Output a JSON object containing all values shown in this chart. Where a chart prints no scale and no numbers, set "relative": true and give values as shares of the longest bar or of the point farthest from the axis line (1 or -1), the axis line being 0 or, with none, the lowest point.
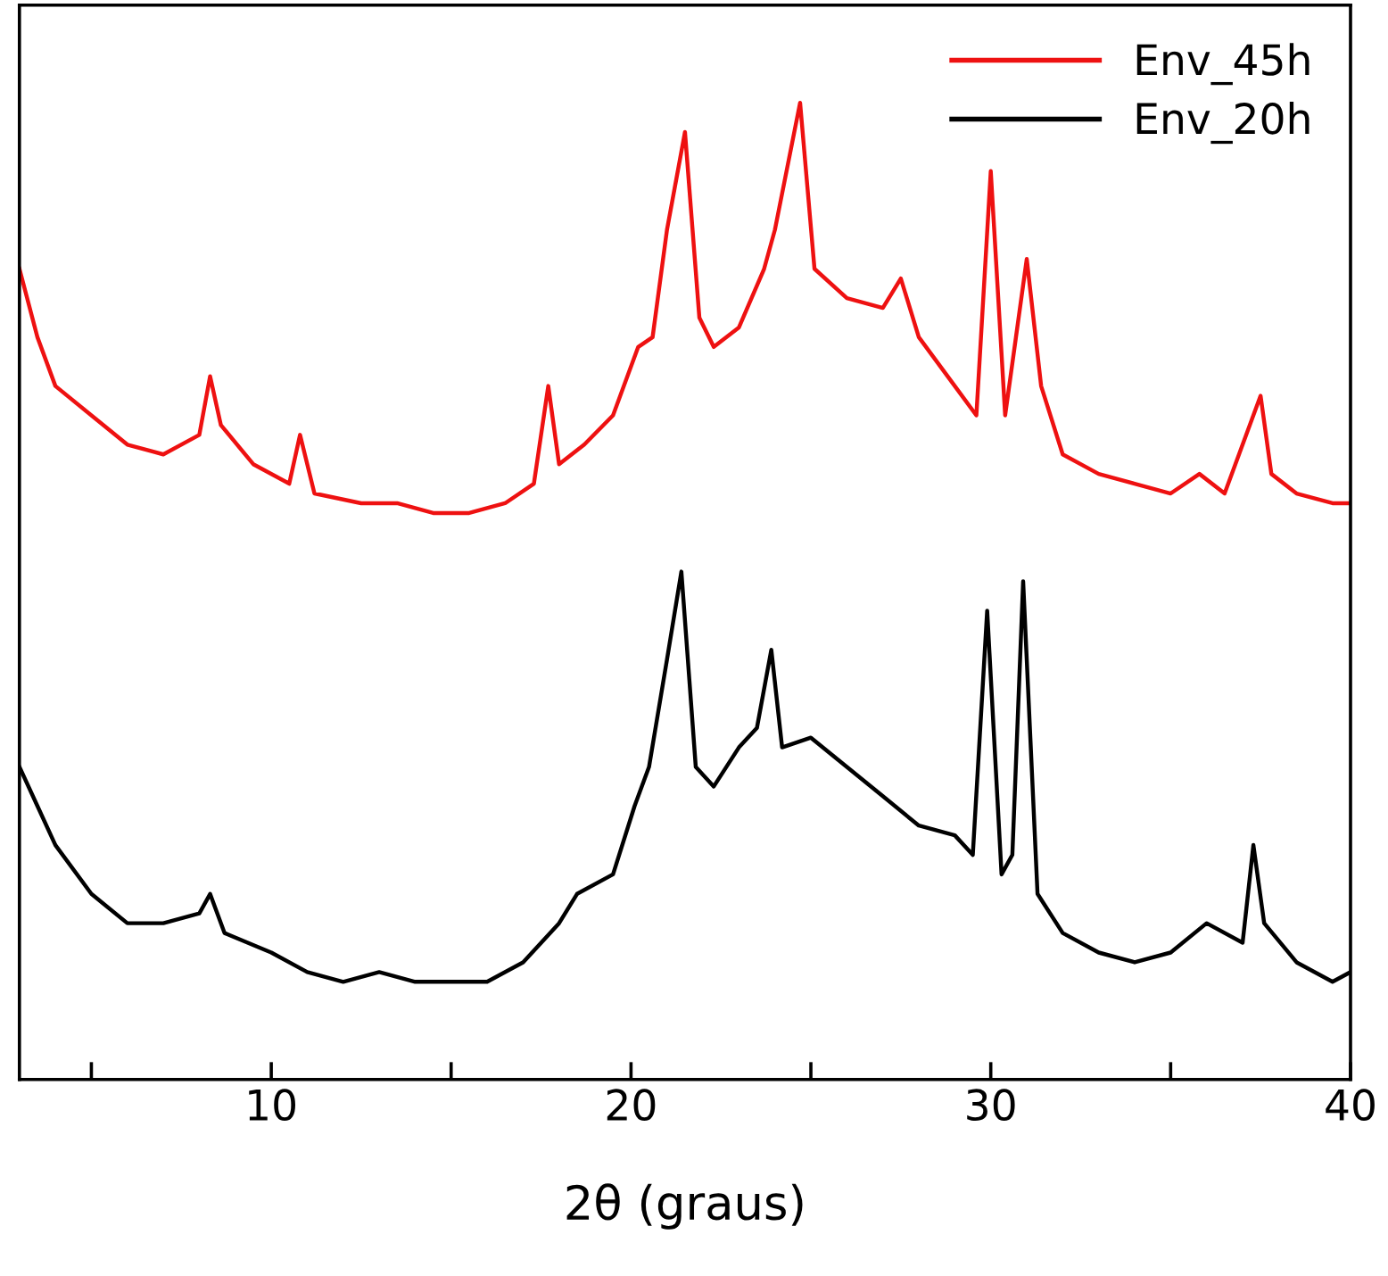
{
  "chart_data": {
    "type": "line",
    "relative": true,
    "xlabel": "2θ (graus)",
    "xlim": [
      3,
      40
    ],
    "xticks": [
      {
        "value": 5,
        "label": null
      },
      10,
      {
        "value": 15,
        "label": null
      },
      20,
      {
        "value": 25,
        "label": null
      },
      30,
      {
        "value": 35,
        "label": null
      },
      40
    ],
    "tick_labels": "x",
    "legend": "top right",
    "grid": false,
    "line_style": "solid",
    "marker": "none",
    "series": [
      {
        "name": "Env_45h",
        "color": "#ee1111",
        "x": [
          3.0,
          3.5,
          4.0,
          5.0,
          6.0,
          7.0,
          8.0,
          8.3,
          8.6,
          9.5,
          10.5,
          10.8,
          11.2,
          12.5,
          13.5,
          14.5,
          15.5,
          16.5,
          17.3,
          17.7,
          18.0,
          18.7,
          19.5,
          20.2,
          20.6,
          21.0,
          21.5,
          21.9,
          22.3,
          23.0,
          23.7,
          24.0,
          24.7,
          25.1,
          26.0,
          27.0,
          27.5,
          28.0,
          29.0,
          29.6,
          30.0,
          30.4,
          30.7,
          31.0,
          31.4,
          32.0,
          33.0,
          34.0,
          35.0,
          35.8,
          36.5,
          37.5,
          37.8,
          38.5,
          39.5,
          40.0
        ],
        "values": [
          0.83,
          0.76,
          0.71,
          0.68,
          0.65,
          0.64,
          0.66,
          0.72,
          0.67,
          0.63,
          0.61,
          0.66,
          0.6,
          0.59,
          0.59,
          0.58,
          0.58,
          0.59,
          0.61,
          0.71,
          0.63,
          0.65,
          0.68,
          0.75,
          0.76,
          0.87,
          0.97,
          0.78,
          0.75,
          0.77,
          0.83,
          0.87,
          1.0,
          0.83,
          0.8,
          0.79,
          0.82,
          0.76,
          0.71,
          0.68,
          0.93,
          0.68,
          0.76,
          0.84,
          0.71,
          0.64,
          0.62,
          0.61,
          0.6,
          0.62,
          0.6,
          0.7,
          0.62,
          0.6,
          0.59,
          0.59
        ]
      },
      {
        "name": "Env_20h",
        "color": "#000000",
        "x": [
          3.0,
          3.5,
          4.0,
          5.0,
          6.0,
          7.0,
          8.0,
          8.3,
          8.7,
          10.0,
          11.0,
          12.0,
          13.0,
          14.0,
          15.0,
          16.0,
          17.0,
          18.0,
          18.5,
          19.5,
          20.1,
          20.5,
          21.0,
          21.4,
          21.8,
          22.3,
          23.0,
          23.5,
          23.9,
          24.2,
          25.0,
          26.0,
          27.0,
          28.0,
          29.0,
          29.5,
          29.9,
          30.3,
          30.6,
          30.9,
          31.3,
          32.0,
          33.0,
          34.0,
          35.0,
          36.0,
          37.0,
          37.3,
          37.6,
          38.5,
          39.5,
          40.0
        ],
        "values": [
          0.32,
          0.28,
          0.24,
          0.19,
          0.16,
          0.16,
          0.17,
          0.19,
          0.15,
          0.13,
          0.11,
          0.1,
          0.11,
          0.1,
          0.1,
          0.1,
          0.12,
          0.16,
          0.19,
          0.21,
          0.28,
          0.32,
          0.43,
          0.52,
          0.32,
          0.3,
          0.34,
          0.36,
          0.44,
          0.34,
          0.35,
          0.32,
          0.29,
          0.26,
          0.25,
          0.23,
          0.48,
          0.21,
          0.23,
          0.51,
          0.19,
          0.15,
          0.13,
          0.12,
          0.13,
          0.16,
          0.14,
          0.24,
          0.16,
          0.12,
          0.1,
          0.11
        ]
      }
    ]
  }
}
